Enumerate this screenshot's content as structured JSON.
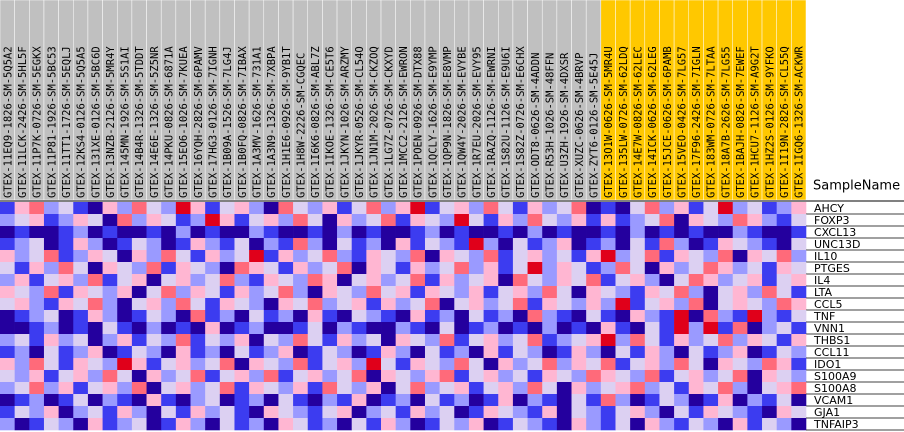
{
  "chart_data": {
    "type": "heatmap",
    "x_label": "SampleName",
    "x": [
      "GTEX-11EQ9-1826-SM-5Q5A2",
      "GTEX-11LCK-2426-SM-5HL5F",
      "GTEX-11P7K-0726-SM-5EGKX",
      "GTEX-11P81-1926-SM-5BC53",
      "GTEX-11TT1-1726-SM-5EQLJ",
      "GTEX-12KS4-0126-SM-5Q5A5",
      "GTEX-131XE-0126-SM-5BC6D",
      "GTEX-13NZB-2126-SM-5MR4Y",
      "GTEX-145MN-1926-SM-5S1AI",
      "GTEX-14B4R-1326-SM-5TDDT",
      "GTEX-14E6E-1326-SM-5Z5NR",
      "GTEX-14PKU-0826-SM-6871A",
      "GTEX-15EO6-1026-SM-7KUEA",
      "GTEX-16YQH-2826-SM-6PAMV",
      "GTEX-17HG3-0126-SM-7IGNH",
      "GTEX-1B09A-1526-SM-7LG4J",
      "GTEX-1B0FQ-0826-SM-7IBAX",
      "GTEX-1A3MV-1626-SM-731A1",
      "GTEX-1A3N9-1326-SM-7XBPA",
      "GTEX-1H1E6-0926-SM-9YB1T",
      "GTEX-1H8W-2226-SM-CGQEC",
      "GTEX-1I6K6-0826-SM-ABL7Z",
      "GTEX-1IKOE-1326-SM-CE5T6",
      "GTEX-1JKYN-1026-SM-ARZMY",
      "GTEX-1JKYR-0526-SM-CL54O",
      "GTEX-1JN1M-2026-SM-CKZOQ",
      "GTEX-1LG7Z-0726-SM-CKXYD",
      "GTEX-1MCC2-2126-SM-EWRON",
      "GTEX-1POEN-0926-SM-DTX88",
      "GTEX-1QCLY-1626-SM-E9YMP",
      "GTEX-1QP9N-1826-SM-E8VMP",
      "GTEX-1QW4Y-2026-SM-EVYBE",
      "GTEX-1R7EU-2026-SM-EVY95",
      "GTEX-1RAZQ-1126-SM-EWRNI",
      "GTEX-1S82U-1126-SM-E9U6I",
      "GTEX-1S82Z-0726-SM-E6CHX",
      "GTEX-ODT8-0626-SM-4ADDN",
      "GTEX-R53H-1026-SM-48FFN",
      "GTEX-U3ZH-1926-SM-4DXSR",
      "GTEX-XUZC-0626-SM-4BRVP",
      "GTEX-ZYT6-0126-SM-5E45J",
      "GTEX-13O1W-0626-SM-5MR4U",
      "GTEX-135LW-0726-SM-62LDQ",
      "GTEX-14E7W-0826-SM-62LEC",
      "GTEX-14ICK-0626-SM-62LEG",
      "GTEX-15JCE-0626-SM-6PAMB",
      "GTEX-15VEO-0426-SM-7LG57",
      "GTEX-17F96-2426-SM-7IGLN",
      "GTEX-183WM-0726-SM-7LTAA",
      "GTEX-18A7B-2626-SM-7LG55",
      "GTEX-1BAJH-0826-SM-7EWEF",
      "GTEX-1HCU7-1126-SM-A9G2T",
      "GTEX-1HZ2S-0126-SM-9YFKO",
      "GTEX-1I19N-2826-SM-CL55Q",
      "GTEX-1IGQ6-1326-SM-ACKWR"
    ],
    "sample_colors": [
      "#c0c0c0",
      "#c0c0c0",
      "#c0c0c0",
      "#c0c0c0",
      "#c0c0c0",
      "#c0c0c0",
      "#c0c0c0",
      "#c0c0c0",
      "#c0c0c0",
      "#c0c0c0",
      "#c0c0c0",
      "#c0c0c0",
      "#c0c0c0",
      "#c0c0c0",
      "#c0c0c0",
      "#c0c0c0",
      "#c0c0c0",
      "#c0c0c0",
      "#c0c0c0",
      "#c0c0c0",
      "#c0c0c0",
      "#c0c0c0",
      "#c0c0c0",
      "#c0c0c0",
      "#c0c0c0",
      "#c0c0c0",
      "#c0c0c0",
      "#c0c0c0",
      "#c0c0c0",
      "#c0c0c0",
      "#c0c0c0",
      "#c0c0c0",
      "#c0c0c0",
      "#c0c0c0",
      "#c0c0c0",
      "#c0c0c0",
      "#c0c0c0",
      "#c0c0c0",
      "#c0c0c0",
      "#c0c0c0",
      "#c0c0c0",
      "#ffc800",
      "#ffc800",
      "#ffc800",
      "#ffc800",
      "#ffc800",
      "#ffc800",
      "#ffc800",
      "#ffc800",
      "#ffc800",
      "#ffc800",
      "#ffc800",
      "#ffc800",
      "#ffc800",
      "#ffc800"
    ],
    "y": [
      "AHCY",
      "FOXP3",
      "CXCL13",
      "UNC13D",
      "IL10",
      "PTGES",
      "IL4",
      "LTA",
      "CCL5",
      "TNF",
      "VNN1",
      "THBS1",
      "CCL11",
      "IDO1",
      "S100A9",
      "S100A8",
      "VCAM1",
      "GJA1",
      "TNFAIP3"
    ],
    "zlim": [
      -3,
      3
    ],
    "colors": [
      "#24009e",
      "#3c3cf0",
      "#9a9aff",
      "#dcd0f2",
      "#ffb6d2",
      "#ff6a7a",
      "#e0001a"
    ],
    "values": [
      [
        -2,
        1,
        2,
        -1,
        0,
        -2,
        -3,
        1,
        -1,
        2,
        0,
        -1,
        3,
        1,
        -2,
        0,
        1,
        -1,
        -3,
        2,
        0,
        -1,
        1,
        -2,
        0,
        2,
        -1,
        1,
        3,
        -2,
        0,
        1,
        -1,
        2,
        0,
        -2,
        1,
        -1,
        0,
        2,
        -3,
        -2,
        -3,
        0,
        2,
        -1,
        1,
        -2,
        0,
        3,
        -1,
        0,
        -2,
        -1,
        1
      ],
      [
        -1,
        0,
        1,
        -2,
        -1,
        1,
        0,
        -3,
        2,
        -1,
        1,
        0,
        -2,
        -1,
        3,
        1,
        -2,
        0,
        1,
        -1,
        2,
        0,
        -3,
        1,
        -1,
        0,
        2,
        -2,
        1,
        0,
        -1,
        3,
        0,
        -2,
        1,
        -1,
        2,
        0,
        -1,
        1,
        -2,
        1,
        -2,
        -1,
        0,
        2,
        -3,
        1,
        0,
        -1,
        2,
        1,
        -1,
        -2,
        0
      ],
      [
        -3,
        -2,
        -3,
        -3,
        -2,
        -1,
        -3,
        -2,
        -3,
        -3,
        -2,
        -3,
        -1,
        -3,
        -2,
        -3,
        -3,
        -1,
        -2,
        -3,
        -3,
        -2,
        -3,
        -1,
        -3,
        -2,
        -3,
        -3,
        -2,
        -1,
        -3,
        -2,
        -3,
        -3,
        -2,
        -3,
        -1,
        -3,
        -2,
        -3,
        -3,
        -2,
        -3,
        -1,
        -3,
        -2,
        -3,
        -2,
        -3,
        -3,
        -1,
        -2,
        -3,
        -3,
        -2
      ],
      [
        -2,
        -1,
        0,
        -3,
        -2,
        1,
        -1,
        -3,
        -2,
        0,
        -1,
        -3,
        -2,
        1,
        -1,
        -2,
        0,
        -3,
        -1,
        -2,
        2,
        -1,
        -3,
        0,
        -2,
        -1,
        -3,
        1,
        -2,
        0,
        -1,
        -2,
        3,
        -1,
        -3,
        0,
        -2,
        -1,
        1,
        -3,
        -2,
        -1,
        -3,
        0,
        -2,
        2,
        -1,
        -3,
        -2,
        1,
        0,
        -1,
        -2,
        -3,
        0
      ],
      [
        1,
        -1,
        0,
        2,
        -2,
        -1,
        1,
        0,
        -3,
        1,
        -1,
        2,
        0,
        -2,
        1,
        -1,
        0,
        3,
        -2,
        1,
        -1,
        0,
        2,
        -1,
        -2,
        1,
        0,
        -1,
        2,
        -3,
        1,
        0,
        -1,
        2,
        -2,
        0,
        1,
        -1,
        0,
        -2,
        1,
        3,
        -1,
        0,
        2,
        -2,
        1,
        0,
        -1,
        2,
        -3,
        1,
        0,
        2,
        -1
      ],
      [
        0,
        -2,
        1,
        -1,
        2,
        0,
        -3,
        1,
        0,
        -1,
        2,
        -2,
        1,
        0,
        -1,
        -3,
        2,
        1,
        0,
        -2,
        1,
        -1,
        0,
        2,
        -3,
        1,
        0,
        -2,
        1,
        -1,
        0,
        2,
        -1,
        1,
        -2,
        0,
        3,
        -1,
        1,
        0,
        -2,
        -1,
        2,
        0,
        -3,
        1,
        -1,
        0,
        2,
        1,
        -1,
        0,
        -2,
        1,
        0
      ],
      [
        -1,
        1,
        -2,
        0,
        1,
        -1,
        2,
        -2,
        0,
        1,
        -3,
        0,
        1,
        -1,
        0,
        2,
        -1,
        -2,
        1,
        0,
        -1,
        2,
        1,
        -3,
        0,
        1,
        -1,
        0,
        2,
        -2,
        1,
        -1,
        0,
        1,
        -3,
        2,
        0,
        -1,
        1,
        0,
        2,
        -2,
        0,
        1,
        -1,
        -3,
        0,
        2,
        1,
        -1,
        0,
        1,
        -2,
        0,
        1
      ],
      [
        1,
        0,
        -1,
        2,
        -2,
        1,
        0,
        -1,
        1,
        -3,
        0,
        2,
        -1,
        1,
        0,
        -2,
        1,
        -1,
        0,
        2,
        -1,
        -3,
        1,
        0,
        -1,
        2,
        0,
        1,
        -2,
        1,
        0,
        -1,
        1,
        -2,
        0,
        1,
        -1,
        2,
        0,
        -3,
        1,
        0,
        -1,
        -2,
        1,
        0,
        2,
        -1,
        -3,
        0,
        1,
        -1,
        2,
        0,
        -2
      ],
      [
        0,
        1,
        -1,
        -2,
        1,
        0,
        2,
        -1,
        -3,
        0,
        1,
        -1,
        2,
        0,
        -2,
        1,
        0,
        -1,
        -3,
        1,
        0,
        2,
        -1,
        0,
        1,
        -2,
        1,
        -1,
        0,
        2,
        -3,
        0,
        1,
        -1,
        0,
        2,
        -2,
        1,
        0,
        -1,
        1,
        -1,
        3,
        -2,
        0,
        1,
        -1,
        2,
        -3,
        0,
        1,
        0,
        -1,
        2,
        1
      ],
      [
        -3,
        -2,
        -1,
        0,
        -3,
        -2,
        1,
        -1,
        -3,
        -2,
        0,
        -1,
        -3,
        2,
        -2,
        -1,
        -3,
        0,
        -2,
        -1,
        -3,
        1,
        -2,
        -3,
        0,
        -1,
        -2,
        -3,
        1,
        -2,
        -1,
        -3,
        0,
        -2,
        -1,
        -3,
        2,
        -1,
        -2,
        -3,
        0,
        -2,
        -3,
        1,
        -1,
        -2,
        3,
        -3,
        2,
        -1,
        -2,
        3,
        -1,
        -2,
        0
      ],
      [
        -3,
        -3,
        -2,
        -1,
        -3,
        -2,
        -3,
        0,
        -2,
        -3,
        -1,
        -3,
        -2,
        -3,
        1,
        -3,
        -2,
        -1,
        -3,
        -3,
        -2,
        0,
        -3,
        -1,
        -2,
        -3,
        -3,
        -1,
        -2,
        -3,
        0,
        -3,
        -2,
        -1,
        -3,
        -2,
        -3,
        -1,
        -3,
        -2,
        -3,
        1,
        -2,
        -3,
        0,
        -2,
        3,
        -1,
        3,
        -2,
        2,
        -3,
        -1,
        0,
        -2
      ],
      [
        -1,
        0,
        -2,
        1,
        -1,
        0,
        -3,
        -1,
        1,
        -2,
        0,
        -1,
        2,
        -2,
        0,
        -1,
        1,
        -3,
        0,
        -1,
        2,
        0,
        -2,
        1,
        -1,
        0,
        -3,
        1,
        0,
        -1,
        2,
        -2,
        0,
        1,
        -1,
        0,
        2,
        -2,
        -1,
        0,
        1,
        3,
        -1,
        2,
        0,
        -2,
        1,
        -1,
        0,
        2,
        -1,
        1,
        0,
        -2,
        1
      ],
      [
        -2,
        -1,
        -3,
        0,
        -2,
        -1,
        1,
        -3,
        -2,
        0,
        -1,
        -3,
        1,
        -2,
        -1,
        -3,
        0,
        -2,
        -1,
        1,
        -3,
        -2,
        0,
        -1,
        -3,
        -2,
        1,
        -1,
        -3,
        0,
        -2,
        -1,
        -3,
        1,
        -2,
        0,
        -1,
        -3,
        -2,
        1,
        -1,
        -3,
        0,
        -2,
        1,
        -1,
        -3,
        0,
        -2,
        -1,
        1,
        -3,
        -2,
        0,
        -1
      ],
      [
        1,
        -1,
        2,
        0,
        -2,
        1,
        0,
        -1,
        3,
        1,
        -2,
        0,
        1,
        -1,
        0,
        2,
        -3,
        1,
        0,
        -1,
        2,
        -2,
        0,
        1,
        -1,
        3,
        0,
        -2,
        1,
        0,
        -1,
        2,
        0,
        -3,
        1,
        -1,
        0,
        2,
        -1,
        1,
        0,
        2,
        -2,
        0,
        1,
        -1,
        2,
        0,
        -3,
        1,
        0,
        -1,
        2,
        1,
        -2
      ],
      [
        0,
        -1,
        1,
        -2,
        0,
        1,
        -1,
        2,
        0,
        -3,
        1,
        -1,
        0,
        2,
        -2,
        0,
        1,
        -1,
        2,
        -2,
        0,
        1,
        -1,
        0,
        2,
        -3,
        1,
        0,
        -1,
        1,
        2,
        -2,
        0,
        1,
        -1,
        0,
        -2,
        1,
        0,
        -1,
        2,
        1,
        0,
        -1,
        2,
        -2,
        0,
        1,
        -1,
        0,
        2,
        -3,
        1,
        0,
        -1
      ],
      [
        -1,
        0,
        2,
        -1,
        1,
        -2,
        0,
        1,
        -1,
        2,
        -3,
        0,
        1,
        -1,
        0,
        2,
        -2,
        1,
        0,
        -1,
        1,
        -2,
        2,
        0,
        -1,
        1,
        -3,
        0,
        2,
        -1,
        0,
        1,
        -2,
        0,
        1,
        -1,
        2,
        0,
        -3,
        1,
        -1,
        0,
        1,
        2,
        -1,
        0,
        -2,
        1,
        0,
        2,
        -1,
        -3,
        0,
        1,
        2
      ],
      [
        -3,
        -2,
        -1,
        -3,
        -2,
        0,
        -3,
        -1,
        -2,
        -3,
        1,
        -2,
        -3,
        -1,
        0,
        -3,
        -2,
        -1,
        -3,
        0,
        -2,
        -3,
        -1,
        -2,
        1,
        -3,
        -2,
        -1,
        -3,
        0,
        -2,
        -1,
        -3,
        -2,
        1,
        -3,
        -1,
        -2,
        -3,
        0,
        -2,
        2,
        -1,
        -3,
        -2,
        0,
        -1,
        -3,
        -2,
        1,
        -3,
        -1,
        -2,
        0,
        -3
      ],
      [
        -2,
        0,
        -1,
        1,
        -3,
        -1,
        0,
        -2,
        1,
        -1,
        -3,
        0,
        -2,
        1,
        -1,
        0,
        -2,
        -3,
        1,
        0,
        -1,
        -2,
        0,
        1,
        -3,
        -1,
        0,
        -2,
        1,
        -1,
        0,
        -3,
        -2,
        1,
        0,
        -1,
        -2,
        1,
        -3,
        0,
        -1,
        -2,
        0,
        1,
        -1,
        -3,
        0,
        -2,
        1,
        0,
        -1,
        -2,
        -3,
        1,
        0
      ],
      [
        -1,
        -3,
        -2,
        0,
        -1,
        -3,
        1,
        -2,
        -1,
        0,
        -3,
        -2,
        1,
        -1,
        -3,
        0,
        -2,
        -1,
        -3,
        1,
        0,
        -2,
        -1,
        -3,
        0,
        -2,
        1,
        -1,
        -3,
        -2,
        0,
        -1,
        1,
        -3,
        -2,
        0,
        -1,
        -2,
        -3,
        1,
        -1,
        -2,
        0,
        -3,
        1,
        -1,
        -2,
        0,
        -1,
        -3,
        1,
        -2,
        0,
        -1,
        -3
      ]
    ]
  }
}
